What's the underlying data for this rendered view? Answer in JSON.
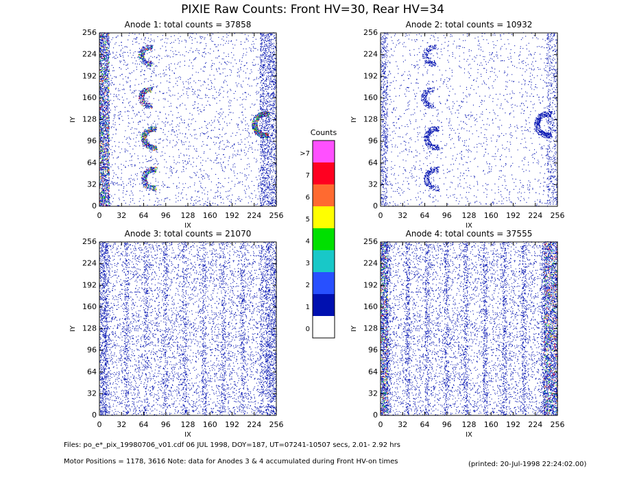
{
  "title": "PIXIE Raw Counts:  Front HV=30, Rear HV=34",
  "chart_data": [
    {
      "type": "heatmap",
      "title": "Anode 1: total counts = 37858",
      "xlabel": "IX",
      "ylabel": "IY",
      "xlim": [
        0,
        256
      ],
      "ylim": [
        0,
        256
      ],
      "xticks": [
        0,
        32,
        64,
        96,
        128,
        160,
        192,
        224,
        256
      ],
      "yticks": [
        0,
        32,
        64,
        96,
        128,
        160,
        192,
        224,
        256
      ]
    },
    {
      "type": "heatmap",
      "title": "Anode 2: total counts = 10932",
      "xlabel": "IX",
      "ylabel": "IY",
      "xlim": [
        0,
        256
      ],
      "ylim": [
        0,
        256
      ],
      "xticks": [
        0,
        32,
        64,
        96,
        128,
        160,
        192,
        224,
        256
      ],
      "yticks": [
        0,
        32,
        64,
        96,
        128,
        160,
        192,
        224,
        256
      ]
    },
    {
      "type": "heatmap",
      "title": "Anode 3: total counts = 21070",
      "xlabel": "IX",
      "ylabel": "IY",
      "xlim": [
        0,
        256
      ],
      "ylim": [
        0,
        256
      ],
      "xticks": [
        0,
        32,
        64,
        96,
        128,
        160,
        192,
        224,
        256
      ],
      "yticks": [
        0,
        32,
        64,
        96,
        128,
        160,
        192,
        224,
        256
      ]
    },
    {
      "type": "heatmap",
      "title": "Anode 4: total counts = 37555",
      "xlabel": "IX",
      "ylabel": "IY",
      "xlim": [
        0,
        256
      ],
      "ylim": [
        0,
        256
      ],
      "xticks": [
        0,
        32,
        64,
        96,
        128,
        160,
        192,
        224,
        256
      ],
      "yticks": [
        0,
        32,
        64,
        96,
        128,
        160,
        192,
        224,
        256
      ]
    }
  ],
  "colorbar": {
    "title": "Counts",
    "ticks": [
      0,
      1,
      2,
      3,
      4,
      5,
      6,
      7,
      {
        "value": 8,
        "label": ">7"
      }
    ],
    "colors": [
      "#ffffff",
      "#0010b0",
      "#2850ff",
      "#18c8c8",
      "#00e000",
      "#ffff00",
      "#ff6a30",
      "#ff0020",
      "#ff50ff"
    ]
  },
  "footer": {
    "files": "Files: po_e*_pix_19980706_v01.cdf    06 JUL 1998, DOY=187, UT=07241-10507 secs,  2.01- 2.92 hrs",
    "motor": "Motor Positions = 1178, 3616   Note: data for Anodes 3 & 4 accumulated during Front HV-on times",
    "printed": "(printed: 20-Jul-1998 22:24:02.00)"
  }
}
